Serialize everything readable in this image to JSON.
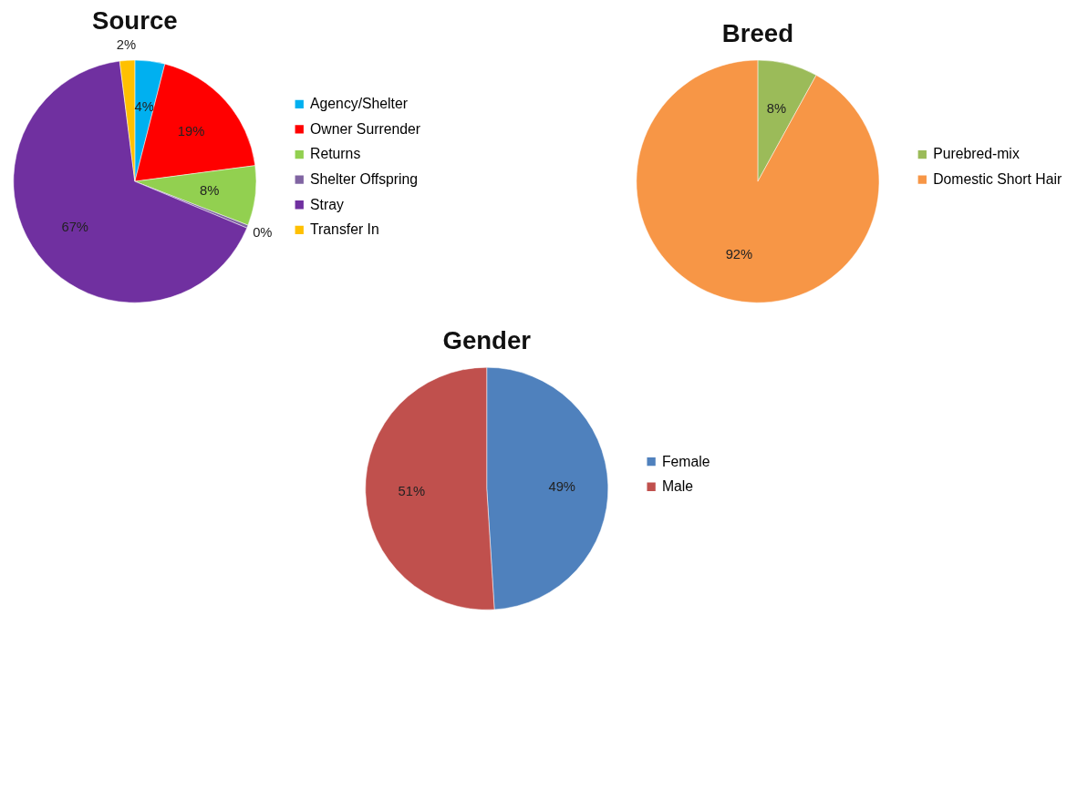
{
  "chart_data": [
    {
      "type": "pie",
      "title": "Source",
      "categories": [
        "Agency/Shelter",
        "Owner Surrender",
        "Returns",
        "Shelter Offspring",
        "Stray",
        "Transfer In"
      ],
      "values": [
        4,
        19,
        8,
        0.4,
        67,
        2
      ],
      "colors": [
        "#00b0f0",
        "#ff0000",
        "#92d050",
        "#8064a2",
        "#7030a0",
        "#ffc000"
      ],
      "value_labels": [
        "4%",
        "19%",
        "8%",
        "0%",
        "67%",
        "2%"
      ],
      "legend": "right"
    },
    {
      "type": "pie",
      "title": "Breed",
      "categories": [
        "Purebred-mix",
        "Domestic Short Hair"
      ],
      "values": [
        8,
        92
      ],
      "colors": [
        "#9bbb59",
        "#f79646"
      ],
      "value_labels": [
        "8%",
        "92%"
      ],
      "legend": "right"
    },
    {
      "type": "pie",
      "title": "Gender",
      "categories": [
        "Female",
        "Male"
      ],
      "values": [
        49,
        51
      ],
      "colors": [
        "#4f81bd",
        "#c0504d"
      ],
      "value_labels": [
        "49%",
        "51%"
      ],
      "legend": "right"
    }
  ]
}
